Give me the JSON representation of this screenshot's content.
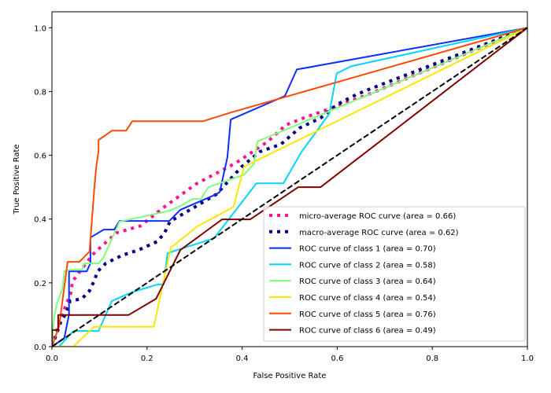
{
  "chart_data": {
    "type": "line",
    "title": "",
    "xlabel": "False Positive Rate",
    "ylabel": "True Positive Rate",
    "xlim": [
      0.0,
      1.0
    ],
    "ylim": [
      0.0,
      1.05
    ],
    "grid": false,
    "legend_position": "lower-right",
    "x_ticks": [
      0.0,
      0.2,
      0.4,
      0.6,
      0.8,
      1.0
    ],
    "x_tick_labels": [
      "0.0",
      "0.2",
      "0.4",
      "0.6",
      "0.8",
      "1.0"
    ],
    "y_ticks": [
      0.0,
      0.2,
      0.4,
      0.6,
      0.8,
      1.0
    ],
    "y_tick_labels": [
      "0.0",
      "0.2",
      "0.4",
      "0.6",
      "0.8",
      "1.0"
    ],
    "series": [
      {
        "name": "micro-average ROC curve (area = 0.66)",
        "color": "#ff1493",
        "style": "dotted",
        "x": [
          0,
          0.015,
          0.03,
          0.04,
          0.043,
          0.084,
          0.101,
          0.136,
          0.187,
          0.23,
          0.303,
          0.387,
          0.454,
          0.492,
          0.533,
          0.581,
          0.624,
          0.669,
          1.0
        ],
        "y": [
          0,
          0.071,
          0.133,
          0.17,
          0.204,
          0.286,
          0.31,
          0.357,
          0.379,
          0.431,
          0.51,
          0.576,
          0.643,
          0.695,
          0.719,
          0.744,
          0.768,
          0.793,
          1.0
        ]
      },
      {
        "name": "macro-average ROC curve (area = 0.62)",
        "color": "#000080",
        "style": "dotted",
        "x": [
          0,
          0.018,
          0.031,
          0.038,
          0.063,
          0.079,
          0.089,
          0.096,
          0.113,
          0.147,
          0.182,
          0.222,
          0.237,
          0.248,
          0.346,
          0.399,
          0.437,
          0.482,
          0.52,
          0.565,
          0.599,
          0.641,
          0.669,
          1.0
        ],
        "y": [
          0,
          0.076,
          0.108,
          0.143,
          0.15,
          0.175,
          0.207,
          0.236,
          0.261,
          0.286,
          0.303,
          0.33,
          0.357,
          0.392,
          0.478,
          0.564,
          0.611,
          0.635,
          0.685,
          0.717,
          0.759,
          0.791,
          0.808,
          1.0
        ]
      },
      {
        "name": "ROC curve of class 1 (area = 0.70)",
        "color": "#0a2eff",
        "style": "solid",
        "x": [
          0,
          0.026,
          0.036,
          0.036,
          0.073,
          0.081,
          0.081,
          0.109,
          0.131,
          0.142,
          0.247,
          0.27,
          0.346,
          0.353,
          0.369,
          0.376,
          0.49,
          0.515,
          1.0
        ],
        "y": [
          0,
          0.027,
          0.101,
          0.236,
          0.236,
          0.261,
          0.342,
          0.367,
          0.367,
          0.394,
          0.394,
          0.429,
          0.478,
          0.485,
          0.594,
          0.712,
          0.786,
          0.869,
          1.0
        ]
      },
      {
        "name": "ROC curve of class 2 (area = 0.58)",
        "color": "#00d4ff",
        "style": "solid",
        "x": [
          0,
          0.015,
          0.045,
          0.098,
          0.126,
          0.167,
          0.222,
          0.235,
          0.243,
          0.341,
          0.43,
          0.487,
          0.525,
          0.583,
          0.599,
          0.629,
          1.0
        ],
        "y": [
          0,
          0,
          0.049,
          0.049,
          0.143,
          0.17,
          0.195,
          0.195,
          0.293,
          0.34,
          0.512,
          0.512,
          0.611,
          0.729,
          0.857,
          0.879,
          1.0
        ]
      },
      {
        "name": "ROC curve of class 3 (area = 0.64)",
        "color": "#7dff7a",
        "style": "solid",
        "x": [
          0,
          0.003,
          0.01,
          0.022,
          0.026,
          0.038,
          0.063,
          0.068,
          0.098,
          0.109,
          0.142,
          0.247,
          0.27,
          0.296,
          0.313,
          0.329,
          0.404,
          0.425,
          0.432,
          1.0
        ],
        "y": [
          0,
          0.076,
          0.133,
          0.182,
          0.236,
          0.241,
          0.241,
          0.261,
          0.261,
          0.281,
          0.392,
          0.426,
          0.441,
          0.463,
          0.463,
          0.5,
          0.539,
          0.574,
          0.643,
          1.0
        ]
      },
      {
        "name": "ROC curve of class 4 (area = 0.54)",
        "color": "#ffe600",
        "style": "solid",
        "x": [
          0,
          0.045,
          0.088,
          0.214,
          0.25,
          0.306,
          0.382,
          0.404,
          1.0
        ],
        "y": [
          0,
          0,
          0.062,
          0.062,
          0.31,
          0.377,
          0.438,
          0.564,
          1.0
        ]
      },
      {
        "name": "ROC curve of class 5 (area = 0.76)",
        "color": "#ff4a00",
        "style": "solid",
        "x": [
          0,
          0.015,
          0.033,
          0.058,
          0.079,
          0.089,
          0.093,
          0.098,
          0.098,
          0.126,
          0.156,
          0.169,
          0.318,
          0.376,
          1.0
        ],
        "y": [
          0,
          0.064,
          0.266,
          0.266,
          0.298,
          0.495,
          0.562,
          0.613,
          0.648,
          0.677,
          0.677,
          0.707,
          0.707,
          0.734,
          1.0
        ]
      },
      {
        "name": "ROC curve of class 6 (area = 0.49)",
        "color": "#800000",
        "style": "solid",
        "x": [
          0,
          0,
          0.013,
          0.013,
          0.161,
          0.219,
          0.27,
          0.358,
          0.417,
          0.518,
          0.565,
          1.0
        ],
        "y": [
          0,
          0.052,
          0.052,
          0.099,
          0.099,
          0.15,
          0.303,
          0.399,
          0.399,
          0.5,
          0.5,
          1.0
        ]
      }
    ],
    "reference_line": {
      "name": "chance",
      "color": "#000000",
      "style": "dashed",
      "x": [
        0,
        1
      ],
      "y": [
        0,
        1
      ]
    }
  }
}
